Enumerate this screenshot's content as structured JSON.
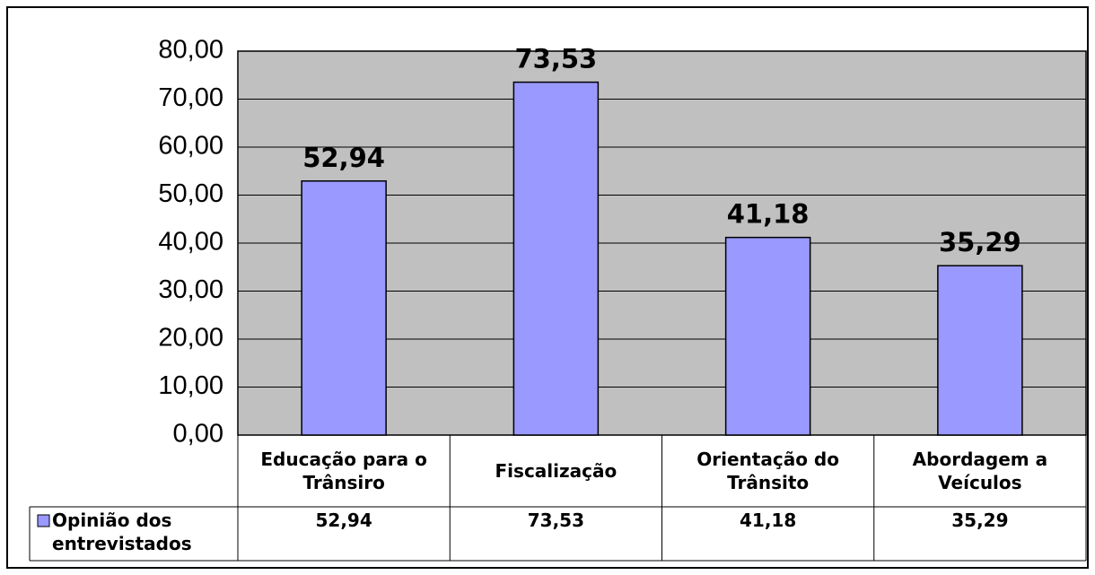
{
  "chart_data": {
    "type": "bar",
    "categories": [
      "Educação para o\nTrânsiro",
      "Fiscalização",
      "Orientação do\nTrânsito",
      "Abordagem a\nVeículos"
    ],
    "series": [
      {
        "name": "Opinião dos\nentrevistados",
        "color": "#9999ff",
        "values": [
          52.94,
          73.53,
          41.18,
          35.29
        ],
        "value_labels": [
          "52,94",
          "73,53",
          "41,18",
          "35,29"
        ]
      }
    ],
    "ylim": [
      0,
      80
    ],
    "yticks": [
      {
        "value": 0,
        "label": "0,00"
      },
      {
        "value": 10,
        "label": "10,00"
      },
      {
        "value": 20,
        "label": "20,00"
      },
      {
        "value": 30,
        "label": "30,00"
      },
      {
        "value": 40,
        "label": "40,00"
      },
      {
        "value": 50,
        "label": "50,00"
      },
      {
        "value": 60,
        "label": "60,00"
      },
      {
        "value": 70,
        "label": "70,00"
      },
      {
        "value": 80,
        "label": "80,00"
      }
    ],
    "grid": true
  }
}
